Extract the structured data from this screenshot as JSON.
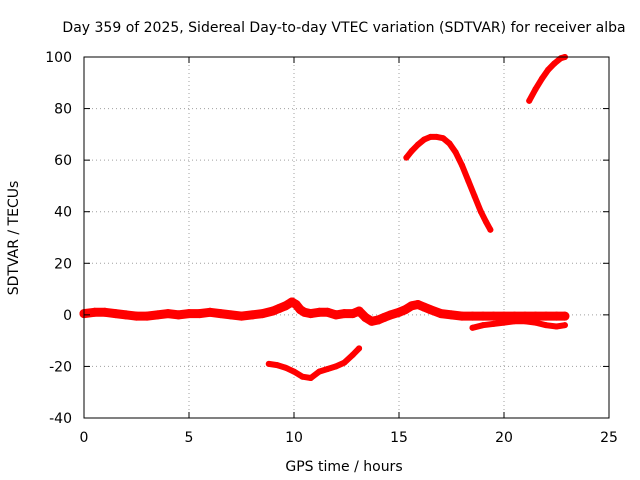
{
  "chart_data": {
    "type": "line",
    "title": "Day 359 of 2025, Sidereal Day-to-day VTEC variation (SDTVAR) for receiver alba",
    "xlabel": "GPS time / hours",
    "ylabel": "SDTVAR / TECUs",
    "xlim": [
      0,
      25
    ],
    "ylim": [
      -40,
      100
    ],
    "xticks": [
      0,
      5,
      10,
      15,
      20,
      25
    ],
    "yticks": [
      -40,
      -20,
      0,
      20,
      40,
      60,
      80,
      100
    ],
    "grid": true,
    "legend": "none",
    "color": "#ff0000",
    "series": [
      {
        "name": "main-band",
        "x": [
          0,
          0.5,
          1,
          1.5,
          2,
          2.5,
          3,
          3.5,
          4,
          4.5,
          5,
          5.5,
          6,
          6.5,
          7,
          7.5,
          8,
          8.5,
          9,
          9.3,
          9.6,
          9.9,
          10.1,
          10.3,
          10.5,
          10.8,
          11.2,
          11.6,
          12,
          12.4,
          12.8,
          13.1,
          13.4,
          13.7,
          14,
          14.3,
          14.6,
          15,
          15.3,
          15.6,
          15.9,
          16.2,
          16.5,
          17,
          17.5,
          18,
          18.5,
          19,
          19.5,
          20,
          20.5,
          21,
          21.5,
          22,
          22.5,
          22.9
        ],
        "y": [
          0.5,
          1.0,
          1.0,
          0.5,
          0.0,
          -0.5,
          -0.5,
          0.0,
          0.5,
          0.0,
          0.5,
          0.5,
          1.0,
          0.5,
          0.0,
          -0.5,
          0.0,
          0.5,
          1.5,
          2.5,
          3.5,
          5.0,
          4.0,
          2.0,
          1.0,
          0.5,
          1.0,
          1.0,
          0.0,
          0.5,
          0.5,
          1.5,
          -1.0,
          -2.5,
          -2.0,
          -1.0,
          0.0,
          1.0,
          2.0,
          3.5,
          4.0,
          3.0,
          2.0,
          0.5,
          0.0,
          -0.5,
          -0.5,
          -0.5,
          -0.5,
          -0.5,
          -0.5,
          -0.5,
          -0.5,
          -0.5,
          -0.5,
          -0.5
        ]
      },
      {
        "name": "lower-arc",
        "x": [
          8.8,
          9.2,
          9.6,
          10,
          10.4,
          10.8,
          11.2,
          11.6,
          12,
          12.4,
          12.8,
          13.1
        ],
        "y": [
          -19,
          -19.5,
          -20.5,
          -22,
          -24,
          -24.5,
          -22,
          -21,
          -20,
          -18.5,
          -15.5,
          -13
        ]
      },
      {
        "name": "late-negative-arm",
        "x": [
          18.5,
          19,
          19.5,
          20,
          20.5,
          21,
          21.5,
          22,
          22.5,
          22.9
        ],
        "y": [
          -5,
          -4,
          -3.5,
          -3,
          -2.5,
          -2.5,
          -3,
          -4,
          -4.5,
          -4
        ]
      },
      {
        "name": "peak-arc",
        "x": [
          15.35,
          15.6,
          15.9,
          16.2,
          16.5,
          16.8,
          17.1,
          17.4,
          17.7,
          18,
          18.3,
          18.6,
          18.9,
          19.15,
          19.35
        ],
        "y": [
          61,
          63.5,
          66,
          68,
          69,
          69,
          68.5,
          66.5,
          63,
          58,
          52,
          46,
          40,
          36,
          33
        ]
      },
      {
        "name": "top-arc",
        "x": [
          21.2,
          21.5,
          21.8,
          22.1,
          22.4,
          22.7,
          22.9
        ],
        "y": [
          83,
          87.5,
          91.5,
          95,
          97.5,
          99.5,
          100
        ]
      }
    ]
  }
}
